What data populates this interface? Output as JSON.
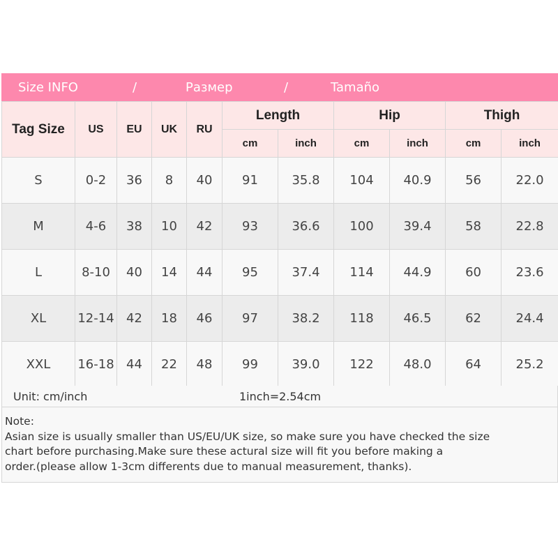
{
  "banner": {
    "en": "Size INFO",
    "sep1": "/",
    "ru": "Размер",
    "sep2": "/",
    "es": "Tamaño"
  },
  "headers": {
    "tag_size": "Tag Size",
    "us": "US",
    "eu": "EU",
    "uk": "UK",
    "ru": "RU",
    "length": "Length",
    "hip": "Hip",
    "thigh": "Thigh",
    "cm": "cm",
    "inch": "inch"
  },
  "rows": [
    [
      "S",
      "0-2",
      "36",
      "8",
      "40",
      "91",
      "35.8",
      "104",
      "40.9",
      "56",
      "22.0"
    ],
    [
      "M",
      "4-6",
      "38",
      "10",
      "42",
      "93",
      "36.6",
      "100",
      "39.4",
      "58",
      "22.8"
    ],
    [
      "L",
      "8-10",
      "40",
      "14",
      "44",
      "95",
      "37.4",
      "114",
      "44.9",
      "60",
      "23.6"
    ],
    [
      "XL",
      "12-14",
      "42",
      "18",
      "46",
      "97",
      "38.2",
      "118",
      "46.5",
      "62",
      "24.4"
    ],
    [
      "XXL",
      "16-18",
      "44",
      "22",
      "48",
      "99",
      "39.0",
      "122",
      "48.0",
      "64",
      "25.2"
    ]
  ],
  "unit": {
    "label": "Unit: cm/inch",
    "conversion": "1inch=2.54cm"
  },
  "note": {
    "title": "Note:",
    "line1": "Asian size is usually smaller than US/EU/UK size, so make sure you have checked the size",
    "line2": "chart before purchasing.Make sure these actural size will fit you before making a",
    "line3": "order.(please allow 1-3cm differents due to manual measurement, thanks)."
  },
  "colors": {
    "banner": "#fd88ad",
    "header_bg": "#fde7e7",
    "row_light": "#f8f8f8",
    "row_dark": "#ececec"
  }
}
